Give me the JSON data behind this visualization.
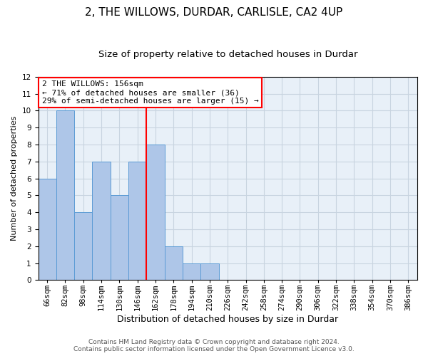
{
  "title": "2, THE WILLOWS, DURDAR, CARLISLE, CA2 4UP",
  "subtitle": "Size of property relative to detached houses in Durdar",
  "xlabel": "Distribution of detached houses by size in Durdar",
  "ylabel": "Number of detached properties",
  "bin_labels": [
    "66sqm",
    "82sqm",
    "98sqm",
    "114sqm",
    "130sqm",
    "146sqm",
    "162sqm",
    "178sqm",
    "194sqm",
    "210sqm",
    "226sqm",
    "242sqm",
    "258sqm",
    "274sqm",
    "290sqm",
    "306sqm",
    "322sqm",
    "338sqm",
    "354sqm",
    "370sqm",
    "386sqm"
  ],
  "bin_values": [
    6,
    10,
    4,
    7,
    5,
    7,
    8,
    2,
    1,
    1,
    0,
    0,
    0,
    0,
    0,
    0,
    0,
    0,
    0,
    0,
    0
  ],
  "bar_color": "#aec6e8",
  "bar_edge_color": "#5b9bd5",
  "vline_x": 6.0,
  "vline_color": "red",
  "annotation_text": "2 THE WILLOWS: 156sqm\n← 71% of detached houses are smaller (36)\n29% of semi-detached houses are larger (15) →",
  "annotation_box_color": "white",
  "annotation_box_edge_color": "red",
  "ylim": [
    0,
    12
  ],
  "yticks": [
    0,
    1,
    2,
    3,
    4,
    5,
    6,
    7,
    8,
    9,
    10,
    11,
    12
  ],
  "grid_color": "#c8d4e0",
  "bg_color": "#e8f0f8",
  "footer_line1": "Contains HM Land Registry data © Crown copyright and database right 2024.",
  "footer_line2": "Contains public sector information licensed under the Open Government Licence v3.0.",
  "title_fontsize": 11,
  "subtitle_fontsize": 9.5,
  "xlabel_fontsize": 9,
  "ylabel_fontsize": 8,
  "tick_fontsize": 7.5,
  "annotation_fontsize": 8,
  "footer_fontsize": 6.5
}
